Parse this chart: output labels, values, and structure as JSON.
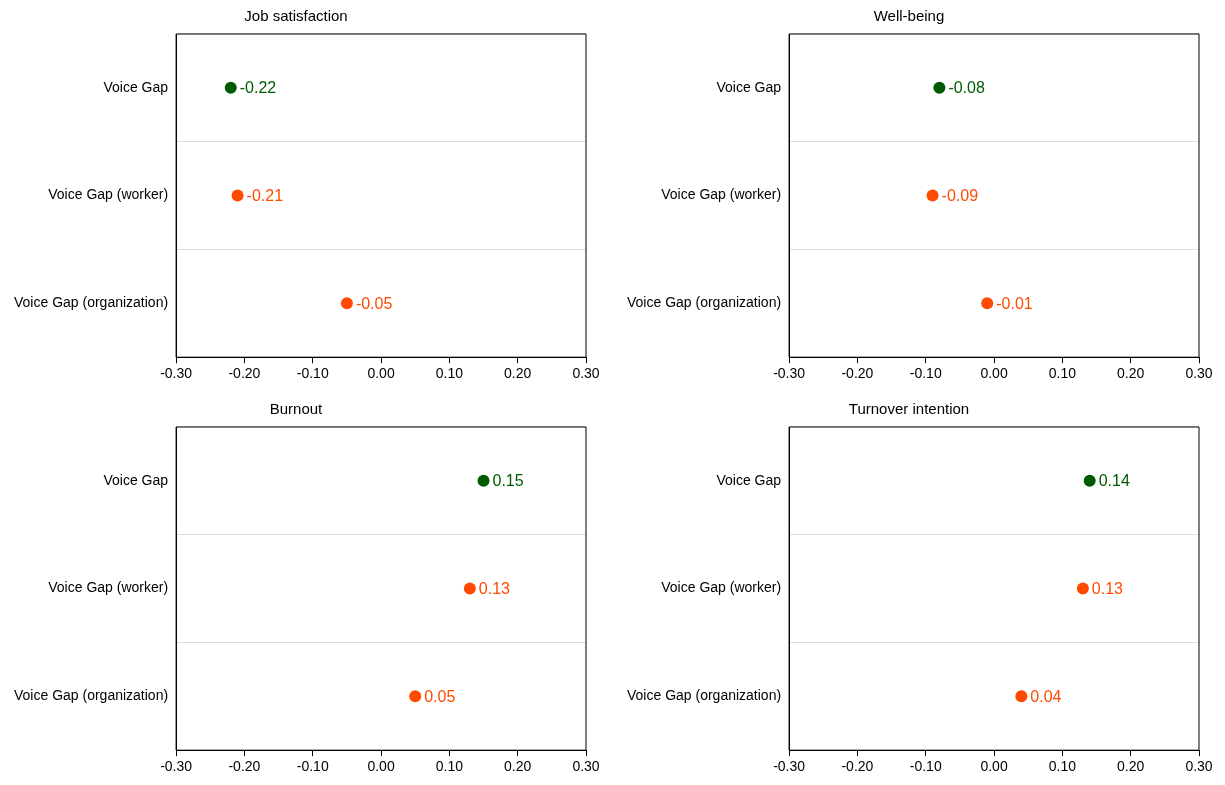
{
  "chart_data": [
    {
      "type": "scatter",
      "orientation": "horizontal",
      "title": "Job satisfaction",
      "categories": [
        "Voice Gap",
        "Voice Gap (worker)",
        "Voice Gap (organization)"
      ],
      "values": [
        -0.22,
        -0.21,
        -0.05
      ],
      "value_labels": [
        "-0.22",
        "-0.21",
        "-0.05"
      ],
      "colors": [
        "#005a00",
        "#ff4a00",
        "#ff4a00"
      ],
      "xlim": [
        -0.3,
        0.3
      ],
      "xticks": [
        {
          "value": -0.3,
          "label": "-0.30"
        },
        {
          "value": -0.2,
          "label": "-0.20"
        },
        {
          "value": -0.1,
          "label": "-0.10"
        },
        {
          "value": 0,
          "label": "0.00"
        },
        {
          "value": 0.1,
          "label": "0.10"
        },
        {
          "value": 0.2,
          "label": "0.20"
        },
        {
          "value": 0.3,
          "label": "0.30"
        }
      ],
      "grid": "y",
      "marker": "circle",
      "legend": false
    },
    {
      "type": "scatter",
      "orientation": "horizontal",
      "title": "Well-being",
      "categories": [
        "Voice Gap",
        "Voice Gap (worker)",
        "Voice Gap (organization)"
      ],
      "values": [
        -0.08,
        -0.09,
        -0.01
      ],
      "value_labels": [
        "-0.08",
        "-0.09",
        "-0.01"
      ],
      "colors": [
        "#005a00",
        "#ff4a00",
        "#ff4a00"
      ],
      "xlim": [
        -0.3,
        0.3
      ],
      "xticks": [
        {
          "value": -0.3,
          "label": "-0.30"
        },
        {
          "value": -0.2,
          "label": "-0.20"
        },
        {
          "value": -0.1,
          "label": "-0.10"
        },
        {
          "value": 0,
          "label": "0.00"
        },
        {
          "value": 0.1,
          "label": "0.10"
        },
        {
          "value": 0.2,
          "label": "0.20"
        },
        {
          "value": 0.3,
          "label": "0.30"
        }
      ],
      "grid": "y",
      "marker": "circle",
      "legend": false
    },
    {
      "type": "scatter",
      "orientation": "horizontal",
      "title": "Burnout",
      "categories": [
        "Voice Gap",
        "Voice Gap (worker)",
        "Voice Gap (organization)"
      ],
      "values": [
        0.15,
        0.13,
        0.05
      ],
      "value_labels": [
        "0.15",
        "0.13",
        "0.05"
      ],
      "colors": [
        "#005a00",
        "#ff4a00",
        "#ff4a00"
      ],
      "xlim": [
        -0.3,
        0.3
      ],
      "xticks": [
        {
          "value": -0.3,
          "label": "-0.30"
        },
        {
          "value": -0.2,
          "label": "-0.20"
        },
        {
          "value": -0.1,
          "label": "-0.10"
        },
        {
          "value": 0,
          "label": "0.00"
        },
        {
          "value": 0.1,
          "label": "0.10"
        },
        {
          "value": 0.2,
          "label": "0.20"
        },
        {
          "value": 0.3,
          "label": "0.30"
        }
      ],
      "grid": "y",
      "marker": "circle",
      "legend": false
    },
    {
      "type": "scatter",
      "orientation": "horizontal",
      "title": "Turnover intention",
      "categories": [
        "Voice Gap",
        "Voice Gap (worker)",
        "Voice Gap (organization)"
      ],
      "values": [
        0.14,
        0.13,
        0.04
      ],
      "value_labels": [
        "0.14",
        "0.13",
        "0.04"
      ],
      "colors": [
        "#005a00",
        "#ff4a00",
        "#ff4a00"
      ],
      "xlim": [
        -0.3,
        0.3
      ],
      "xticks": [
        {
          "value": -0.3,
          "label": "-0.30"
        },
        {
          "value": -0.2,
          "label": "-0.20"
        },
        {
          "value": -0.1,
          "label": "-0.10"
        },
        {
          "value": 0,
          "label": "0.00"
        },
        {
          "value": 0.1,
          "label": "0.10"
        },
        {
          "value": 0.2,
          "label": "0.20"
        },
        {
          "value": 0.3,
          "label": "0.30"
        }
      ],
      "grid": "y",
      "marker": "circle",
      "legend": false
    }
  ]
}
